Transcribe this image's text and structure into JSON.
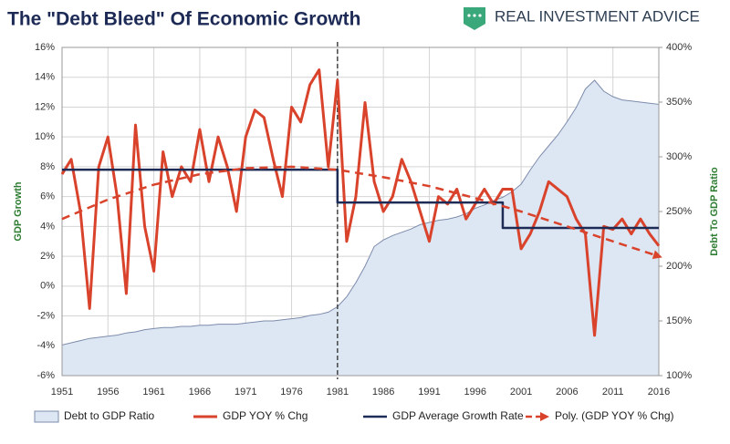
{
  "chart_data": {
    "type": "line",
    "title": "The \"Debt Bleed\" Of Economic Growth",
    "brand": "REAL INVESTMENT ADVICE",
    "y_label": "GDP Growth",
    "y2_label": "Debt To GDP Ratio",
    "xlim": [
      1951,
      2016
    ],
    "xticks": [
      1951,
      1956,
      1961,
      1966,
      1971,
      1976,
      1981,
      1986,
      1991,
      1996,
      2001,
      2006,
      2011,
      2016
    ],
    "ylim": [
      -6,
      16
    ],
    "yticks": [
      {
        "value": -6,
        "label": "-6%"
      },
      {
        "value": -4,
        "label": "-4%"
      },
      {
        "value": -2,
        "label": "-2%"
      },
      {
        "value": 0,
        "label": "0%"
      },
      {
        "value": 2,
        "label": "2%"
      },
      {
        "value": 4,
        "label": "4%"
      },
      {
        "value": 6,
        "label": "6%"
      },
      {
        "value": 8,
        "label": "8%"
      },
      {
        "value": 10,
        "label": "10%"
      },
      {
        "value": 12,
        "label": "12%"
      },
      {
        "value": 14,
        "label": "14%"
      },
      {
        "value": 16,
        "label": "16%"
      }
    ],
    "y2lim": [
      100,
      400
    ],
    "y2ticks": [
      {
        "value": 100,
        "label": "100%"
      },
      {
        "value": 150,
        "label": "150%"
      },
      {
        "value": 200,
        "label": "200%"
      },
      {
        "value": 250,
        "label": "250%"
      },
      {
        "value": 300,
        "label": "300%"
      },
      {
        "value": 350,
        "label": "350%"
      },
      {
        "value": 400,
        "label": "400%"
      }
    ],
    "grid": true,
    "vline_x": 1981,
    "series": [
      {
        "name": "Debt to GDP Ratio",
        "type": "area",
        "axis": "y2",
        "color": "#dde6f3",
        "stroke": "#7d8cab",
        "x": [
          1951,
          1952,
          1953,
          1954,
          1955,
          1956,
          1957,
          1958,
          1959,
          1960,
          1961,
          1962,
          1963,
          1964,
          1965,
          1966,
          1967,
          1968,
          1969,
          1970,
          1971,
          1972,
          1973,
          1974,
          1975,
          1976,
          1977,
          1978,
          1979,
          1980,
          1981,
          1982,
          1983,
          1984,
          1985,
          1986,
          1987,
          1988,
          1989,
          1990,
          1991,
          1992,
          1993,
          1994,
          1995,
          1996,
          1997,
          1998,
          1999,
          2000,
          2001,
          2002,
          2003,
          2004,
          2005,
          2006,
          2007,
          2008,
          2009,
          2010,
          2011,
          2012,
          2013,
          2014,
          2015,
          2016
        ],
        "values": [
          128,
          130,
          132,
          134,
          135,
          136,
          137,
          139,
          140,
          142,
          143,
          144,
          144,
          145,
          145,
          146,
          146,
          147,
          147,
          147,
          148,
          149,
          150,
          150,
          151,
          152,
          153,
          155,
          156,
          158,
          163,
          172,
          185,
          200,
          218,
          224,
          228,
          231,
          234,
          238,
          240,
          242,
          243,
          245,
          248,
          253,
          256,
          260,
          263,
          268,
          275,
          288,
          300,
          310,
          320,
          332,
          345,
          362,
          370,
          360,
          355,
          352,
          351,
          350,
          349,
          348
        ]
      },
      {
        "name": "GDP YOY % Chg",
        "type": "line",
        "axis": "y",
        "color": "#d9432c",
        "width": 3,
        "x": [
          1951,
          1952,
          1953,
          1954,
          1955,
          1956,
          1957,
          1958,
          1959,
          1960,
          1961,
          1962,
          1963,
          1964,
          1965,
          1966,
          1967,
          1968,
          1969,
          1970,
          1971,
          1972,
          1973,
          1974,
          1975,
          1976,
          1977,
          1978,
          1979,
          1980,
          1981,
          1982,
          1983,
          1984,
          1985,
          1986,
          1987,
          1988,
          1989,
          1990,
          1991,
          1992,
          1993,
          1994,
          1995,
          1996,
          1997,
          1998,
          1999,
          2000,
          2001,
          2002,
          2003,
          2004,
          2005,
          2006,
          2007,
          2008,
          2009,
          2010,
          2011,
          2012,
          2013,
          2014,
          2015,
          2016
        ],
        "values": [
          7.5,
          8.5,
          5,
          -1.5,
          8,
          10,
          6,
          -0.5,
          10.8,
          4,
          1,
          9,
          6,
          8,
          7,
          10.5,
          7,
          10,
          8,
          5,
          10,
          11.8,
          11.3,
          8.5,
          6,
          12,
          11,
          13.5,
          14.5,
          8,
          13.8,
          3,
          6,
          12.3,
          7,
          5,
          6,
          8.5,
          7,
          5,
          3,
          6,
          5.5,
          6.5,
          4.5,
          5.5,
          6.5,
          5.5,
          6.5,
          6.5,
          2.5,
          3.5,
          5,
          7,
          6.5,
          6,
          4.5,
          3.5,
          -3.3,
          4,
          3.8,
          4.5,
          3.5,
          4.5,
          3.5,
          2.7
        ]
      },
      {
        "name": "GDP Average Growth Rate",
        "type": "line",
        "axis": "y",
        "color": "#1d2b57",
        "width": 2.5,
        "x": [
          1951,
          1981,
          1981,
          1999,
          1999,
          2016
        ],
        "values": [
          7.8,
          7.8,
          5.6,
          5.6,
          3.9,
          3.9
        ]
      },
      {
        "name": "Poly. (GDP YOY % Chg)",
        "type": "dashed",
        "axis": "y",
        "color": "#d9432c",
        "width": 2.5,
        "x": [
          1951,
          1956,
          1961,
          1966,
          1971,
          1976,
          1981,
          1986,
          1991,
          1996,
          2001,
          2006,
          2011,
          2016
        ],
        "values": [
          4.5,
          5.8,
          6.8,
          7.5,
          7.9,
          8,
          7.8,
          7.3,
          6.7,
          5.9,
          5,
          4,
          3,
          2
        ]
      }
    ]
  }
}
